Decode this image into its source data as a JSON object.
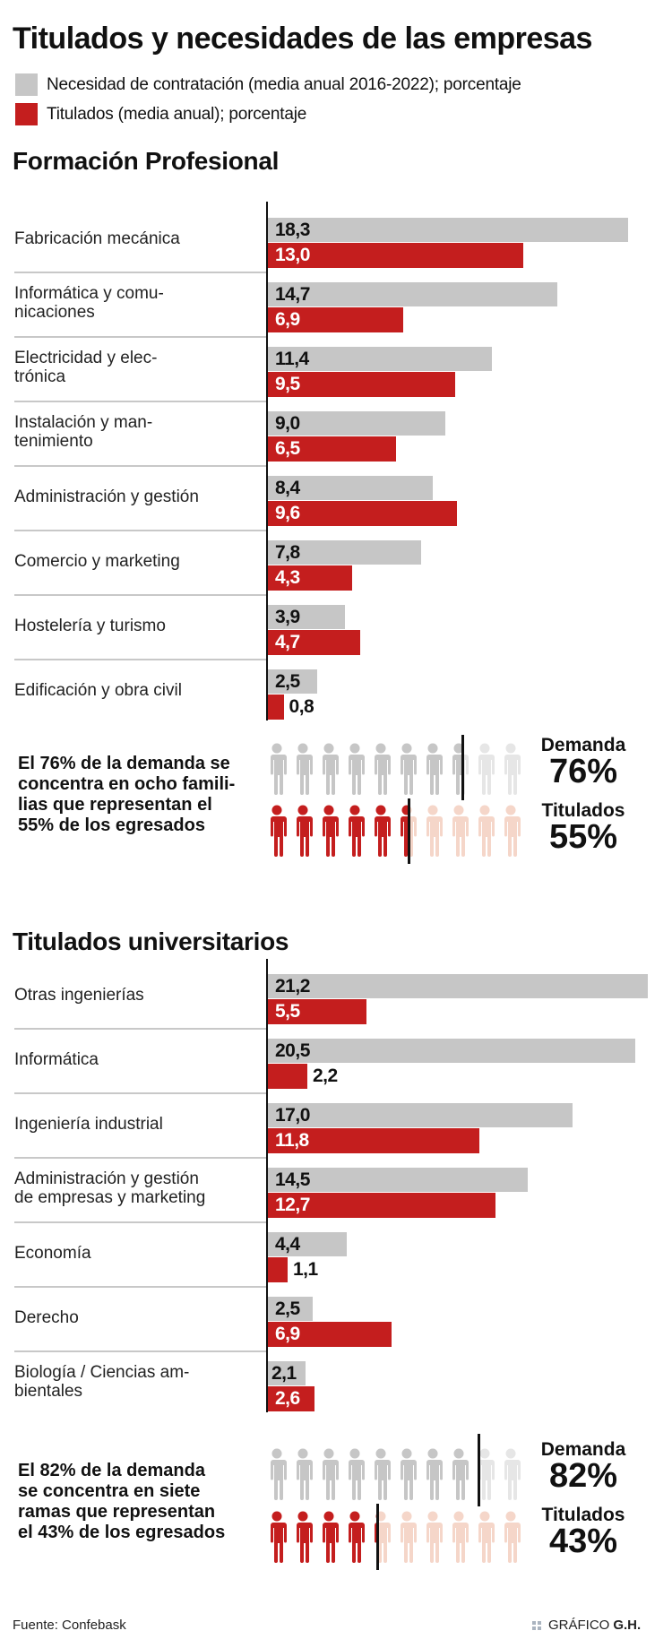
{
  "title": "Titulados y necesidades de las empresas",
  "legend": [
    {
      "label": "Necesidad de contratación (media anual 2016-2022); porcentaje",
      "color": "#c6c6c6"
    },
    {
      "label": "Titulados (media anual); porcentaje",
      "color": "#c41e1e"
    }
  ],
  "colors": {
    "demand": "#c6c6c6",
    "demand_light": "#e6e6e6",
    "graduates": "#c41e1e",
    "graduates_light": "#f5d6c9",
    "axis": "#111111",
    "separator": "#c8c8c8"
  },
  "chart_data": [
    {
      "type": "bar",
      "orientation": "horizontal",
      "title": "Formación Profesional",
      "categories": [
        "Fabricación mecánica",
        "Informática y comu-\nnicaciones",
        "Electricidad y elec-\ntrónica",
        "Instalación y man-\ntenimiento",
        "Administración y gestión",
        "Comercio y marketing",
        "Hostelería y turismo",
        "Edificación y obra civil"
      ],
      "series": [
        {
          "name": "Necesidad de contratación (media anual 2016-2022); porcentaje",
          "values": [
            18.3,
            14.7,
            11.4,
            9.0,
            8.4,
            7.8,
            3.9,
            2.5
          ],
          "labels": [
            "18,3",
            "14,7",
            "11,4",
            "9,0",
            "8,4",
            "7,8",
            "3,9",
            "2,5"
          ]
        },
        {
          "name": "Titulados (media anual); porcentaje",
          "values": [
            13.0,
            6.9,
            9.5,
            6.5,
            9.6,
            4.3,
            4.7,
            0.8
          ],
          "labels": [
            "13,0",
            "6,9",
            "9,5",
            "6,5",
            "9,6",
            "4,3",
            "4,7",
            "0,8"
          ]
        }
      ],
      "xlim": [
        0,
        18.3
      ],
      "grid": false,
      "legend": "top-left"
    },
    {
      "type": "bar",
      "orientation": "horizontal",
      "title": "Titulados universitarios",
      "categories": [
        "Otras ingenierías",
        "Informática",
        "Ingeniería industrial",
        "Administración y gestión\nde empresas y marketing",
        "Economía",
        "Derecho",
        "Biología / Ciencias am-\nbientales"
      ],
      "series": [
        {
          "name": "Necesidad de contratación (media anual 2016-2022); porcentaje",
          "values": [
            21.2,
            20.5,
            17.0,
            14.5,
            4.4,
            2.5,
            2.1
          ],
          "labels": [
            "21,2",
            "20,5",
            "17,0",
            "14,5",
            "4,4",
            "2,5",
            "2,1"
          ]
        },
        {
          "name": "Titulados (media anual); porcentaje",
          "values": [
            5.5,
            2.2,
            11.8,
            12.7,
            1.1,
            6.9,
            2.6
          ],
          "labels": [
            "5,5",
            "2,2",
            "11,8",
            "12,7",
            "1,1",
            "6,9",
            "2,6"
          ]
        }
      ],
      "xlim": [
        0,
        21.2
      ],
      "grid": false,
      "legend": "top-left"
    }
  ],
  "pictograms": [
    {
      "text": "El 76% de la demanda se concentra en ocho familias que representan el 55% de los egresados",
      "text_lines": [
        "El 76% de la demanda se",
        "concentra en ocho famili-",
        "lias que representan el",
        "55% de los egresados"
      ],
      "icons": 10,
      "demand": {
        "label": "Demanda",
        "value": 76,
        "display": "76%"
      },
      "graduates": {
        "label": "Titulados",
        "value": 55,
        "display": "55%"
      }
    },
    {
      "text": "El 82% de la demanda se concentra en siete ramas que representan el 43% de los egresados",
      "text_lines": [
        "El 82% de la demanda",
        "se concentra en siete",
        "ramas que representan",
        "el 43% de los egresados"
      ],
      "icons": 10,
      "demand": {
        "label": "Demanda",
        "value": 82,
        "display": "82%"
      },
      "graduates": {
        "label": "Titulados",
        "value": 43,
        "display": "43%"
      }
    }
  ],
  "footer": {
    "source": "Fuente: Confebask",
    "credit_prefix": "GRÁFICO",
    "credit_bold": "G.H.",
    "credit_icon": "grid-dots-icon"
  }
}
